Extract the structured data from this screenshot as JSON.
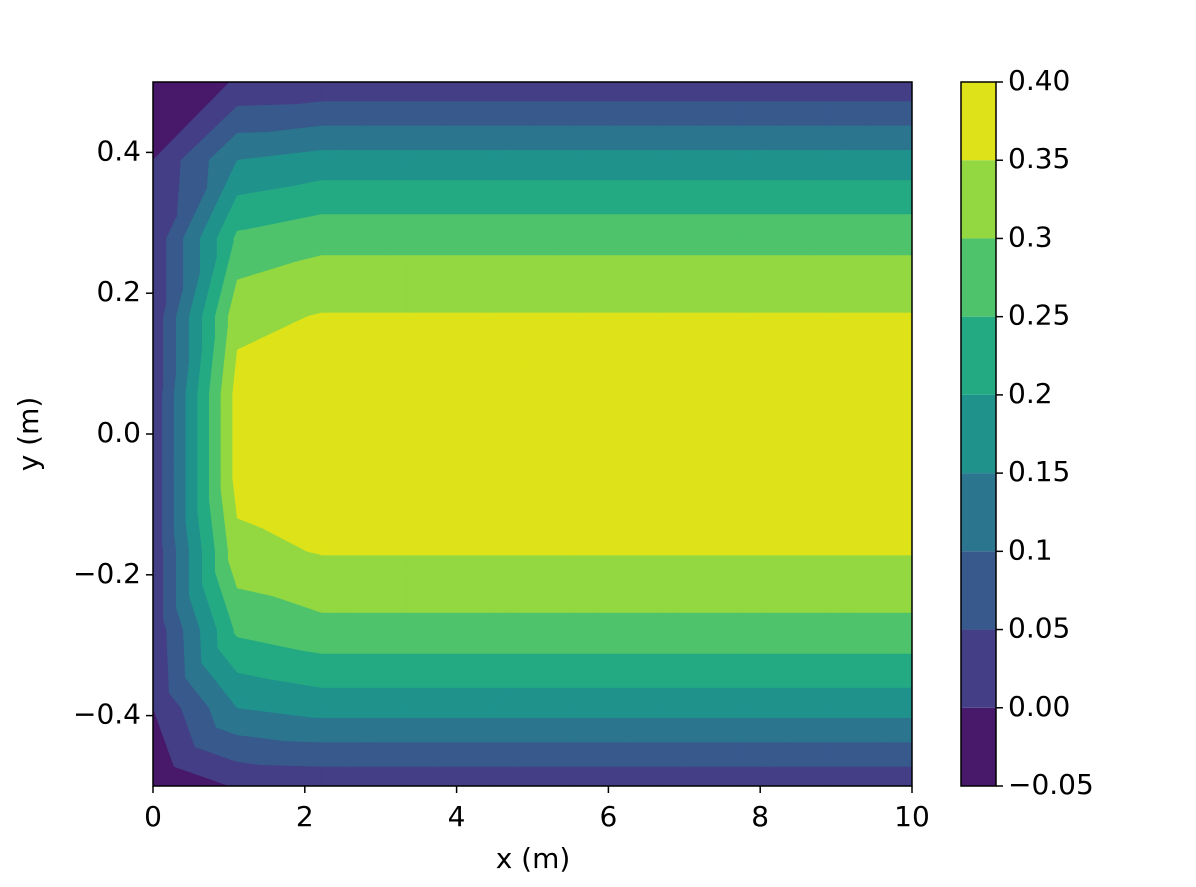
{
  "chart_data": {
    "type": "contour",
    "x_label": "x (m)",
    "y_label": "y (m)",
    "x": [
      0,
      1.111,
      2.222,
      3.333,
      4.444,
      5.556,
      6.667,
      7.778,
      8.889,
      10
    ],
    "y": [
      -0.5,
      -0.389,
      -0.278,
      -0.167,
      -0.056,
      0.056,
      0.167,
      0.278,
      0.389,
      0.5
    ],
    "z": [
      [
        -0.05,
        0.005,
        0.01,
        0.01,
        0.01,
        0.01,
        0.01,
        0.01,
        0.01,
        0.01
      ],
      [
        0,
        0.15,
        0.17,
        0.17,
        0.17,
        0.17,
        0.17,
        0.17,
        0.17,
        0.17
      ],
      [
        0.01,
        0.26,
        0.285,
        0.285,
        0.285,
        0.285,
        0.285,
        0.285,
        0.285,
        0.285
      ],
      [
        0.01,
        0.335,
        0.353,
        0.353,
        0.353,
        0.353,
        0.353,
        0.353,
        0.353,
        0.353
      ],
      [
        0.01,
        0.37,
        0.385,
        0.385,
        0.385,
        0.385,
        0.385,
        0.385,
        0.385,
        0.385
      ],
      [
        0.01,
        0.37,
        0.385,
        0.385,
        0.385,
        0.385,
        0.385,
        0.385,
        0.385,
        0.385
      ],
      [
        0.01,
        0.335,
        0.353,
        0.353,
        0.353,
        0.353,
        0.353,
        0.353,
        0.353,
        0.353
      ],
      [
        0.01,
        0.26,
        0.285,
        0.285,
        0.285,
        0.285,
        0.285,
        0.285,
        0.285,
        0.285
      ],
      [
        0,
        0.15,
        0.17,
        0.17,
        0.17,
        0.17,
        0.17,
        0.17,
        0.17,
        0.17
      ],
      [
        -0.05,
        0.005,
        0.01,
        0.01,
        0.01,
        0.01,
        0.01,
        0.01,
        0.01,
        0.01
      ]
    ],
    "xlim": [
      0,
      10
    ],
    "ylim": [
      -0.5,
      0.5
    ],
    "xticks": [
      0,
      2,
      4,
      6,
      8,
      10
    ],
    "yticks": [
      {
        "value": -0.4,
        "label": "−0.4"
      },
      {
        "value": -0.2,
        "label": "−0.2"
      },
      {
        "value": 0,
        "label": "0.0"
      },
      0.2,
      0.4
    ],
    "levels": [
      {
        "value": -0.05,
        "label": "−0.05"
      },
      {
        "value": 0,
        "label": "0.00"
      },
      0.05,
      0.1,
      0.15,
      0.2,
      0.25,
      0.3,
      0.35,
      {
        "value": 0.4,
        "label": "0.40"
      }
    ],
    "colors": [
      "#48186a",
      "#433e85",
      "#38598c",
      "#2b758e",
      "#1f928c",
      "#24aa83",
      "#4ec36b",
      "#93d741",
      "#dde318"
    ]
  }
}
